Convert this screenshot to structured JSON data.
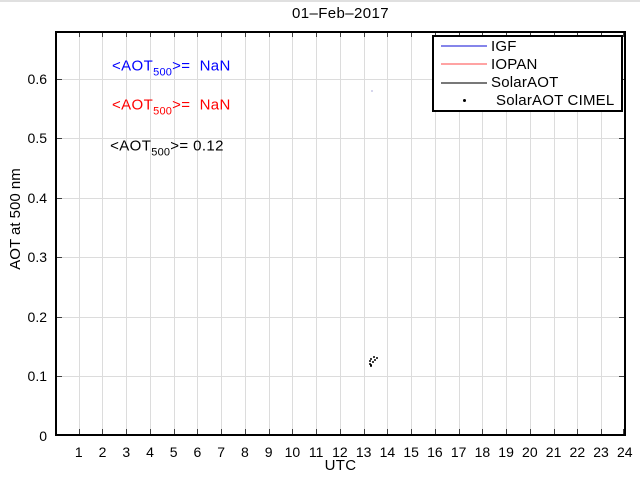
{
  "chart_data": {
    "type": "scatter",
    "title": "01–Feb–2017",
    "xlabel": "UTC",
    "ylabel": "AOT at 500 nm",
    "xlim": [
      0,
      24.05
    ],
    "ylim": [
      0,
      0.68
    ],
    "grid": true,
    "grid_color": "#dcdcdc",
    "axis_color": "#000000",
    "x_ticks": {
      "values": [
        1,
        2,
        3,
        4,
        5,
        6,
        7,
        8,
        9,
        10,
        11,
        12,
        13,
        14,
        15,
        16,
        17,
        18,
        19,
        20,
        21,
        22,
        23,
        24
      ],
      "labels": [
        "1",
        "2",
        "3",
        "4",
        "5",
        "6",
        "7",
        "8",
        "9",
        "10",
        "11",
        "12",
        "13",
        "14",
        "15",
        "16",
        "17",
        "18",
        "19",
        "20",
        "21",
        "22",
        "23",
        "24"
      ]
    },
    "y_ticks": {
      "values": [
        0,
        0.1,
        0.2,
        0.3,
        0.4,
        0.5,
        0.6
      ],
      "labels": [
        "0",
        "0.1",
        "0.2",
        "0.3",
        "0.4",
        "0.5",
        "0.6"
      ]
    },
    "legend": {
      "position": "top-right",
      "items": [
        {
          "label": "IGF",
          "sample": "line",
          "color": "#0000ff",
          "display_color": "#8585ea"
        },
        {
          "label": "IOPAN",
          "sample": "line",
          "color": "#ff0000",
          "display_color": "#ffa3a3"
        },
        {
          "label": "SolarAOT",
          "sample": "line",
          "color": "#555555",
          "display_color": "#787878"
        },
        {
          "label": "SolarAOT CIMEL",
          "sample": "marker",
          "color": "#000000",
          "display_color": "#000000"
        }
      ]
    },
    "series": [
      {
        "name": "SolarAOT CIMEL",
        "type": "scatter",
        "color": "#000000",
        "points": [
          [
            13.44,
            0.133
          ],
          [
            13.56,
            0.131
          ],
          [
            13.31,
            0.129
          ],
          [
            13.48,
            0.128
          ],
          [
            13.27,
            0.126
          ],
          [
            13.39,
            0.124
          ],
          [
            13.27,
            0.121
          ],
          [
            13.31,
            0.118
          ]
        ]
      },
      {
        "name": "stray-faint-point",
        "type": "scatter",
        "color": "#c9c9e8",
        "points": [
          [
            13.35,
            0.579
          ]
        ]
      }
    ],
    "annotations": [
      {
        "prefix": "<AOT",
        "sub": "500",
        "suffix": ">=  NaN",
        "color": "#0000ff",
        "x": 2.4,
        "y": 0.62
      },
      {
        "prefix": "<AOT",
        "sub": "500",
        "suffix": ">=  NaN",
        "color": "#ff0000",
        "x": 2.4,
        "y": 0.554
      },
      {
        "prefix": "<AOT",
        "sub": "500",
        "suffix": ">= 0.12",
        "color": "#000000",
        "x": 2.32,
        "y": 0.485
      }
    ]
  }
}
